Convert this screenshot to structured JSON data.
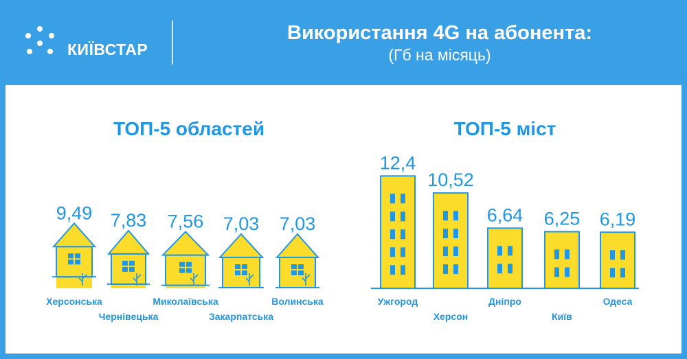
{
  "header": {
    "brand": "КИЇВСТАР",
    "logo_icon": "kyivstar-star-icon",
    "title": "Використання 4G на абонента:",
    "subtitle": "(Гб на місяць)"
  },
  "colors": {
    "header_bg": "#3aa0e6",
    "accent_blue": "#2196e3",
    "fill_yellow": "#fbdc2a",
    "panel_bg": "#ffffff"
  },
  "chart_data": [
    {
      "type": "bar",
      "title": "ТОП-5 областей",
      "categories": [
        "Херсонська",
        "Чернівецька",
        "Миколаївська",
        "Закарпатська",
        "Волинська"
      ],
      "values": [
        9.49,
        7.83,
        7.56,
        7.03,
        7.03
      ],
      "value_labels": [
        "9,49",
        "7,83",
        "7,56",
        "7,03",
        "7,03"
      ],
      "mark_style": "house"
    },
    {
      "type": "bar",
      "title": "ТОП-5 міст",
      "categories": [
        "Ужгород",
        "Херсон",
        "Дніпро",
        "Київ",
        "Одеса"
      ],
      "values": [
        12.4,
        10.52,
        6.64,
        6.25,
        6.19
      ],
      "value_labels": [
        "12,4",
        "10,52",
        "6,64",
        "6,25",
        "6,19"
      ],
      "mark_style": "building"
    }
  ]
}
